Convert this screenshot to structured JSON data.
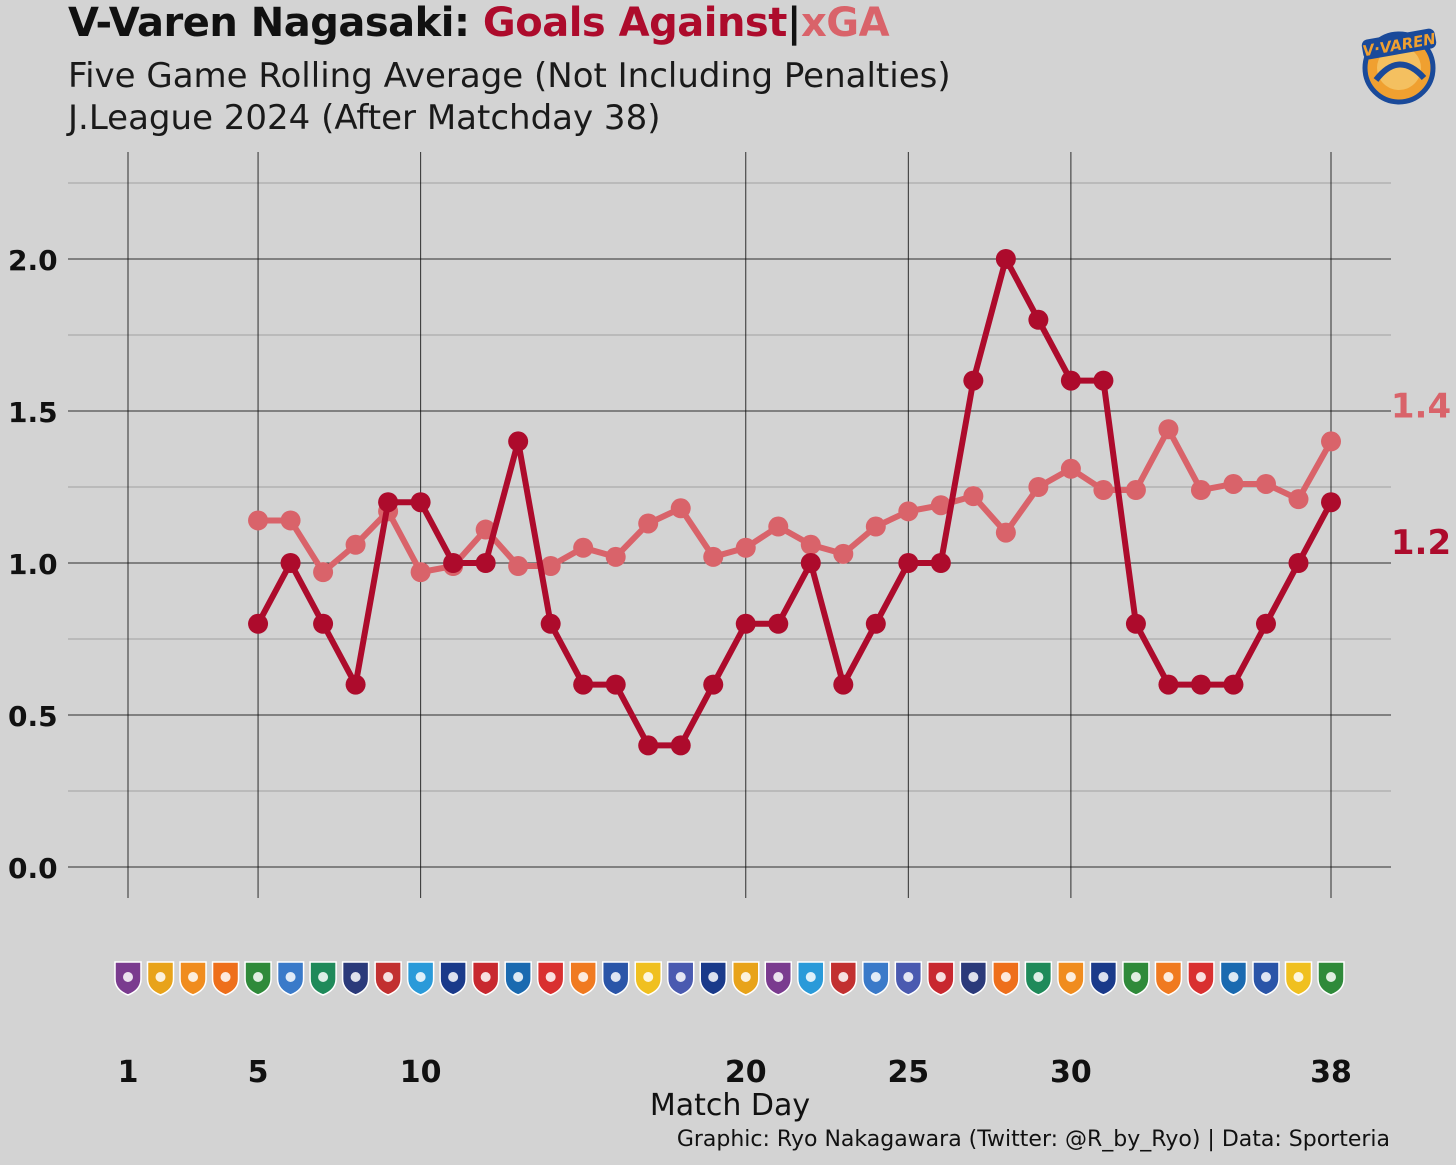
{
  "title": {
    "team": "V-Varen Nagasaki:",
    "goals_against": "Goals Against",
    "separator": "|",
    "xga": "xGA"
  },
  "subtitle_1": "Five Game Rolling Average (Not Including Penalties)",
  "subtitle_2": "J.League 2024 (After Matchday 38)",
  "caption": "Graphic: Ryo Nakagawara (Twitter: @R_by_Ryo) | Data: Sporteria",
  "logo_icon": "v-varen-nagasaki-crest-icon",
  "colors": {
    "background": "#d3d3d3",
    "goals_against": "#ad0b2c",
    "xga": "#d9636a",
    "grid": "#111111"
  },
  "chart_data": {
    "type": "line",
    "xlabel": "Match Day",
    "ylabel": "",
    "xlim": [
      1,
      38
    ],
    "ylim": [
      0,
      2.25
    ],
    "x_ticks": [
      1,
      5,
      10,
      20,
      25,
      30,
      38
    ],
    "x_tick_labels": [
      "1",
      "5",
      "10",
      "20",
      "25",
      "30",
      "38"
    ],
    "y_ticks": [
      0.0,
      0.5,
      1.0,
      1.5,
      2.0
    ],
    "y_tick_labels": [
      "0.0",
      "0.5",
      "1.0",
      "1.5",
      "2.0"
    ],
    "grid": true,
    "x": [
      5,
      6,
      7,
      8,
      9,
      10,
      11,
      12,
      13,
      14,
      15,
      16,
      17,
      18,
      19,
      20,
      21,
      22,
      23,
      24,
      25,
      26,
      27,
      28,
      29,
      30,
      31,
      32,
      33,
      34,
      35,
      36,
      37,
      38
    ],
    "series": [
      {
        "key": "goals_against",
        "color": "#ad0b2c",
        "values": [
          0.8,
          1.0,
          0.8,
          0.6,
          1.2,
          1.2,
          1.0,
          1.0,
          1.4,
          0.8,
          0.6,
          0.6,
          0.4,
          0.4,
          0.6,
          0.8,
          0.8,
          1.0,
          0.6,
          0.8,
          1.0,
          1.0,
          1.6,
          2.0,
          1.8,
          1.6,
          1.6,
          0.8,
          0.6,
          0.6,
          0.6,
          0.8,
          1.0,
          1.2
        ],
        "end_label": "1.2"
      },
      {
        "key": "xga",
        "color": "#d9636a",
        "values": [
          1.14,
          1.14,
          0.97,
          1.06,
          1.17,
          0.97,
          0.99,
          1.11,
          0.99,
          0.99,
          1.05,
          1.02,
          1.13,
          1.18,
          1.02,
          1.05,
          1.12,
          1.06,
          1.03,
          1.12,
          1.17,
          1.19,
          1.22,
          1.1,
          1.25,
          1.31,
          1.24,
          1.24,
          1.44,
          1.24,
          1.26,
          1.26,
          1.21,
          1.4
        ],
        "end_label": "1.4"
      }
    ],
    "opponent_icons": [
      "fujieda-myfc-crest-icon",
      "vegalta-sendai-crest-icon",
      "shimizu-s-pulse-crest-icon",
      "renofa-yamaguchi-crest-icon",
      "fc-gifu-crest-icon",
      "yokohama-fc-crest-icon",
      "tochigi-sc-crest-icon",
      "montedio-yamagata-crest-icon",
      "roasso-kumamoto-crest-icon",
      "tokushima-vortis-crest-icon",
      "fc-machida-crest-icon",
      "kataller-toyama-crest-icon",
      "blaublitz-akita-crest-icon",
      "iwaki-fc-crest-icon",
      "ehime-fc-crest-icon",
      "mito-hollyhock-crest-icon",
      "jef-united-crest-icon",
      "thespa-gunma-crest-icon",
      "fc-machida-crest-icon",
      "vegalta-sendai-crest-icon",
      "fujieda-myfc-crest-icon",
      "tokushima-vortis-crest-icon",
      "roasso-kumamoto-crest-icon",
      "yokohama-fc-crest-icon",
      "thespa-gunma-crest-icon",
      "kataller-toyama-crest-icon",
      "montedio-yamagata-crest-icon",
      "renofa-yamaguchi-crest-icon",
      "tochigi-sc-crest-icon",
      "shimizu-s-pulse-crest-icon",
      "fc-machida-crest-icon",
      "fc-gifu-crest-icon",
      "ehime-fc-crest-icon",
      "iwaki-fc-crest-icon",
      "blaublitz-akita-crest-icon",
      "mito-hollyhock-crest-icon",
      "jef-united-crest-icon",
      "fc-gifu-crest-icon"
    ],
    "opponent_icon_colors": [
      "#7a3b8f",
      "#e8a31a",
      "#f08c1e",
      "#ee6f1b",
      "#2f8a3a",
      "#3a7ac9",
      "#1f8a5a",
      "#2b3a7a",
      "#c23030",
      "#2a9ad9",
      "#1a3a8a",
      "#c8282f",
      "#1a6ab0",
      "#d93030",
      "#f07a20",
      "#2a55a8",
      "#f0c020",
      "#4a5ab0",
      "#1a3a8a",
      "#e8a31a",
      "#7a3b8f",
      "#2a9ad9",
      "#c23030",
      "#3a7ac9",
      "#4a5ab0",
      "#c8282f",
      "#2b3a7a",
      "#ee6f1b",
      "#1f8a5a",
      "#f08c1e",
      "#1a3a8a",
      "#2f8a3a",
      "#f07a20",
      "#d93030",
      "#1a6ab0",
      "#2a55a8",
      "#f0c020",
      "#2f8a3a"
    ]
  }
}
